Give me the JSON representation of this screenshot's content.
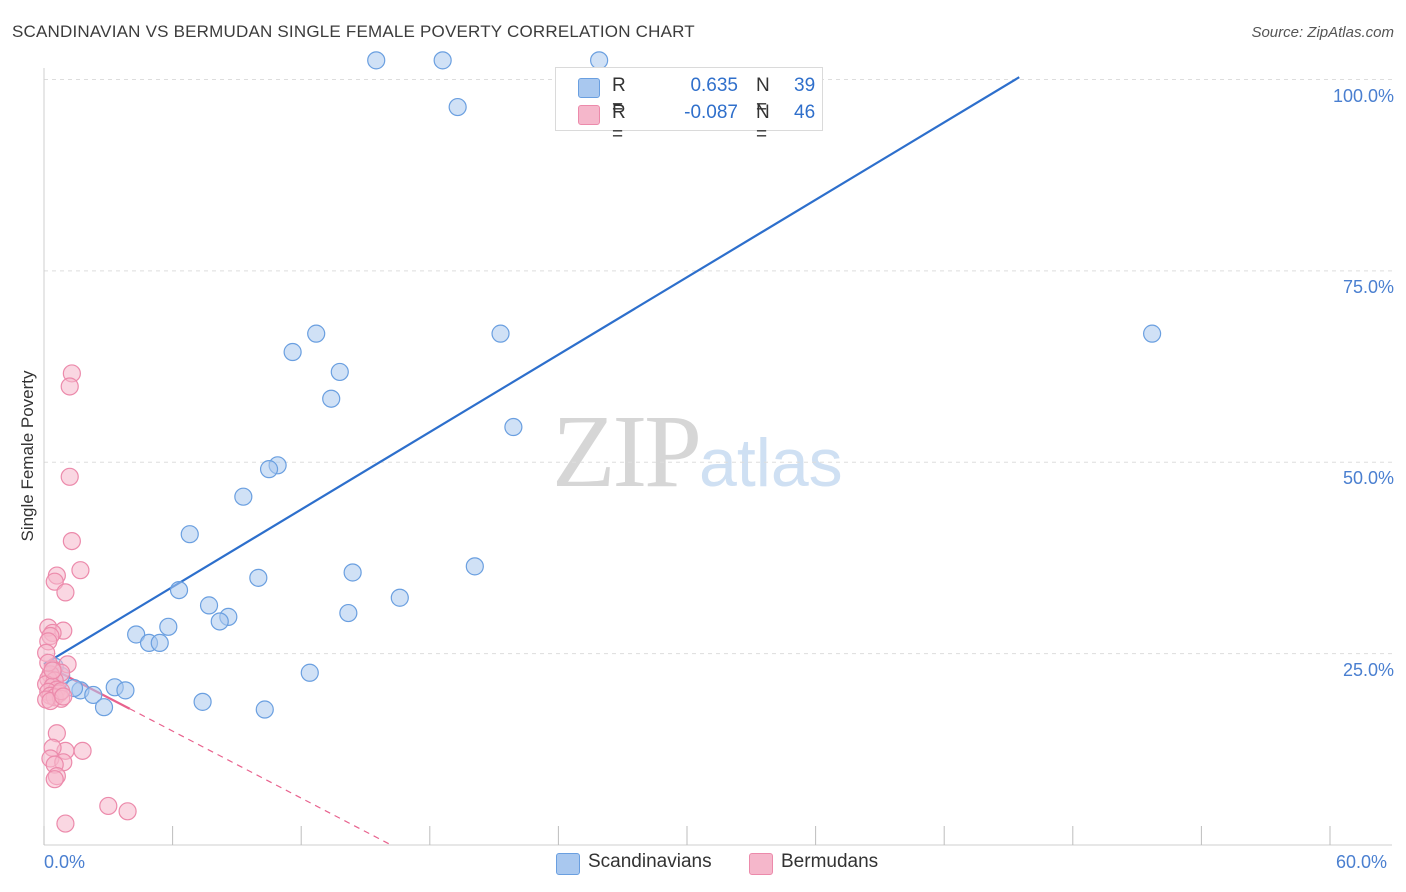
{
  "header": {
    "title": "SCANDINAVIAN VS BERMUDAN SINGLE FEMALE POVERTY CORRELATION CHART",
    "source": "Source: ZipAtlas.com"
  },
  "legend": {
    "rows": [
      {
        "r_label": "R =",
        "r_value": "0.635",
        "n_label": "N =",
        "n_value": "39"
      },
      {
        "r_label": "R =",
        "r_value": "-0.087",
        "n_label": "N =",
        "n_value": "46"
      }
    ]
  },
  "bottom_legend": {
    "items": [
      "Scandinavians",
      "Bermudans"
    ]
  },
  "watermark": {
    "zip": "ZIP",
    "atlas": "atlas"
  },
  "axes": {
    "ylabel": "Single Female Poverty",
    "yticks": [
      "100.0%",
      "75.0%",
      "50.0%",
      "25.0%"
    ],
    "xticks": [
      "0.0%",
      "60.0%"
    ]
  },
  "colors": {
    "blue_fill": "#a9c8ef",
    "blue_stroke": "#6a9fe0",
    "blue_line": "#2d6fcc",
    "pink_fill": "#f5b7cb",
    "pink_stroke": "#ec8aab",
    "pink_line": "#e8628e",
    "grid": "#dddddd"
  },
  "chart_data": {
    "type": "scatter",
    "title": "SCANDINAVIAN VS BERMUDAN SINGLE FEMALE POVERTY CORRELATION CHART",
    "xlabel": "",
    "ylabel": "Single Female Poverty",
    "xlim": [
      0,
      60
    ],
    "ylim": [
      0,
      100
    ],
    "grid": true,
    "legend_position": "top-center",
    "series": [
      {
        "name": "Scandinavians",
        "color": "#a9c8ef",
        "r": 0.635,
        "n": 39,
        "points": [
          [
            15.5,
            102.5
          ],
          [
            18.6,
            102.5
          ],
          [
            25.9,
            102.5
          ],
          [
            19.3,
            96.4
          ],
          [
            12.7,
            66.8
          ],
          [
            21.3,
            66.8
          ],
          [
            51.7,
            66.8
          ],
          [
            11.6,
            64.4
          ],
          [
            13.8,
            61.8
          ],
          [
            13.4,
            58.3
          ],
          [
            21.9,
            54.6
          ],
          [
            10.9,
            49.6
          ],
          [
            10.5,
            49.1
          ],
          [
            9.3,
            45.5
          ],
          [
            6.8,
            40.6
          ],
          [
            20.1,
            36.4
          ],
          [
            14.4,
            35.6
          ],
          [
            10.0,
            34.9
          ],
          [
            6.3,
            33.3
          ],
          [
            16.6,
            32.3
          ],
          [
            7.7,
            31.3
          ],
          [
            8.6,
            29.8
          ],
          [
            14.2,
            30.3
          ],
          [
            8.2,
            29.2
          ],
          [
            5.8,
            28.5
          ],
          [
            4.3,
            27.5
          ],
          [
            4.9,
            26.4
          ],
          [
            5.4,
            26.4
          ],
          [
            12.4,
            22.5
          ],
          [
            3.3,
            20.6
          ],
          [
            3.8,
            20.2
          ],
          [
            1.7,
            20.2
          ],
          [
            1.4,
            20.5
          ],
          [
            2.3,
            19.6
          ],
          [
            7.4,
            18.7
          ],
          [
            10.3,
            17.7
          ],
          [
            2.8,
            18.0
          ],
          [
            0.8,
            22.1
          ],
          [
            0.5,
            23.3
          ]
        ]
      },
      {
        "name": "Bermudans",
        "color": "#f5b7cb",
        "r": -0.087,
        "n": 46,
        "points": [
          [
            1.3,
            61.6
          ],
          [
            1.2,
            59.9
          ],
          [
            1.2,
            48.1
          ],
          [
            1.3,
            39.7
          ],
          [
            1.7,
            35.9
          ],
          [
            0.6,
            35.2
          ],
          [
            0.5,
            34.4
          ],
          [
            1.0,
            33.0
          ],
          [
            0.2,
            28.4
          ],
          [
            0.9,
            28.0
          ],
          [
            0.4,
            27.7
          ],
          [
            0.3,
            27.3
          ],
          [
            0.2,
            26.6
          ],
          [
            0.1,
            25.1
          ],
          [
            1.1,
            23.6
          ],
          [
            0.4,
            23.0
          ],
          [
            0.8,
            22.5
          ],
          [
            0.3,
            22.3
          ],
          [
            0.2,
            21.7
          ],
          [
            0.5,
            21.5
          ],
          [
            0.1,
            21.0
          ],
          [
            0.4,
            20.7
          ],
          [
            0.6,
            20.3
          ],
          [
            0.2,
            20.0
          ],
          [
            0.7,
            19.8
          ],
          [
            0.3,
            19.5
          ],
          [
            0.5,
            19.3
          ],
          [
            0.8,
            19.1
          ],
          [
            0.1,
            19.0
          ],
          [
            0.3,
            18.8
          ],
          [
            0.6,
            14.6
          ],
          [
            1.0,
            12.3
          ],
          [
            1.8,
            12.3
          ],
          [
            0.4,
            12.7
          ],
          [
            0.3,
            11.3
          ],
          [
            0.9,
            10.8
          ],
          [
            0.5,
            10.5
          ],
          [
            0.6,
            9.0
          ],
          [
            0.5,
            8.6
          ],
          [
            3.0,
            5.1
          ],
          [
            3.9,
            4.4
          ],
          [
            1.0,
            2.8
          ],
          [
            0.2,
            23.8
          ],
          [
            0.4,
            22.8
          ],
          [
            0.8,
            20.1
          ],
          [
            0.9,
            19.4
          ]
        ]
      }
    ],
    "trendlines": [
      {
        "series": "Scandinavians",
        "style": "solid",
        "x": [
          0,
          45.5
        ],
        "y": [
          23.6,
          100.3
        ]
      },
      {
        "series": "Bermudans",
        "style": "solid",
        "x": [
          0,
          4.0
        ],
        "y": [
          23.6,
          17.8
        ]
      },
      {
        "series": "Bermudans",
        "style": "dashed",
        "x": [
          4.0,
          16.2
        ],
        "y": [
          17.8,
          0
        ]
      }
    ]
  }
}
